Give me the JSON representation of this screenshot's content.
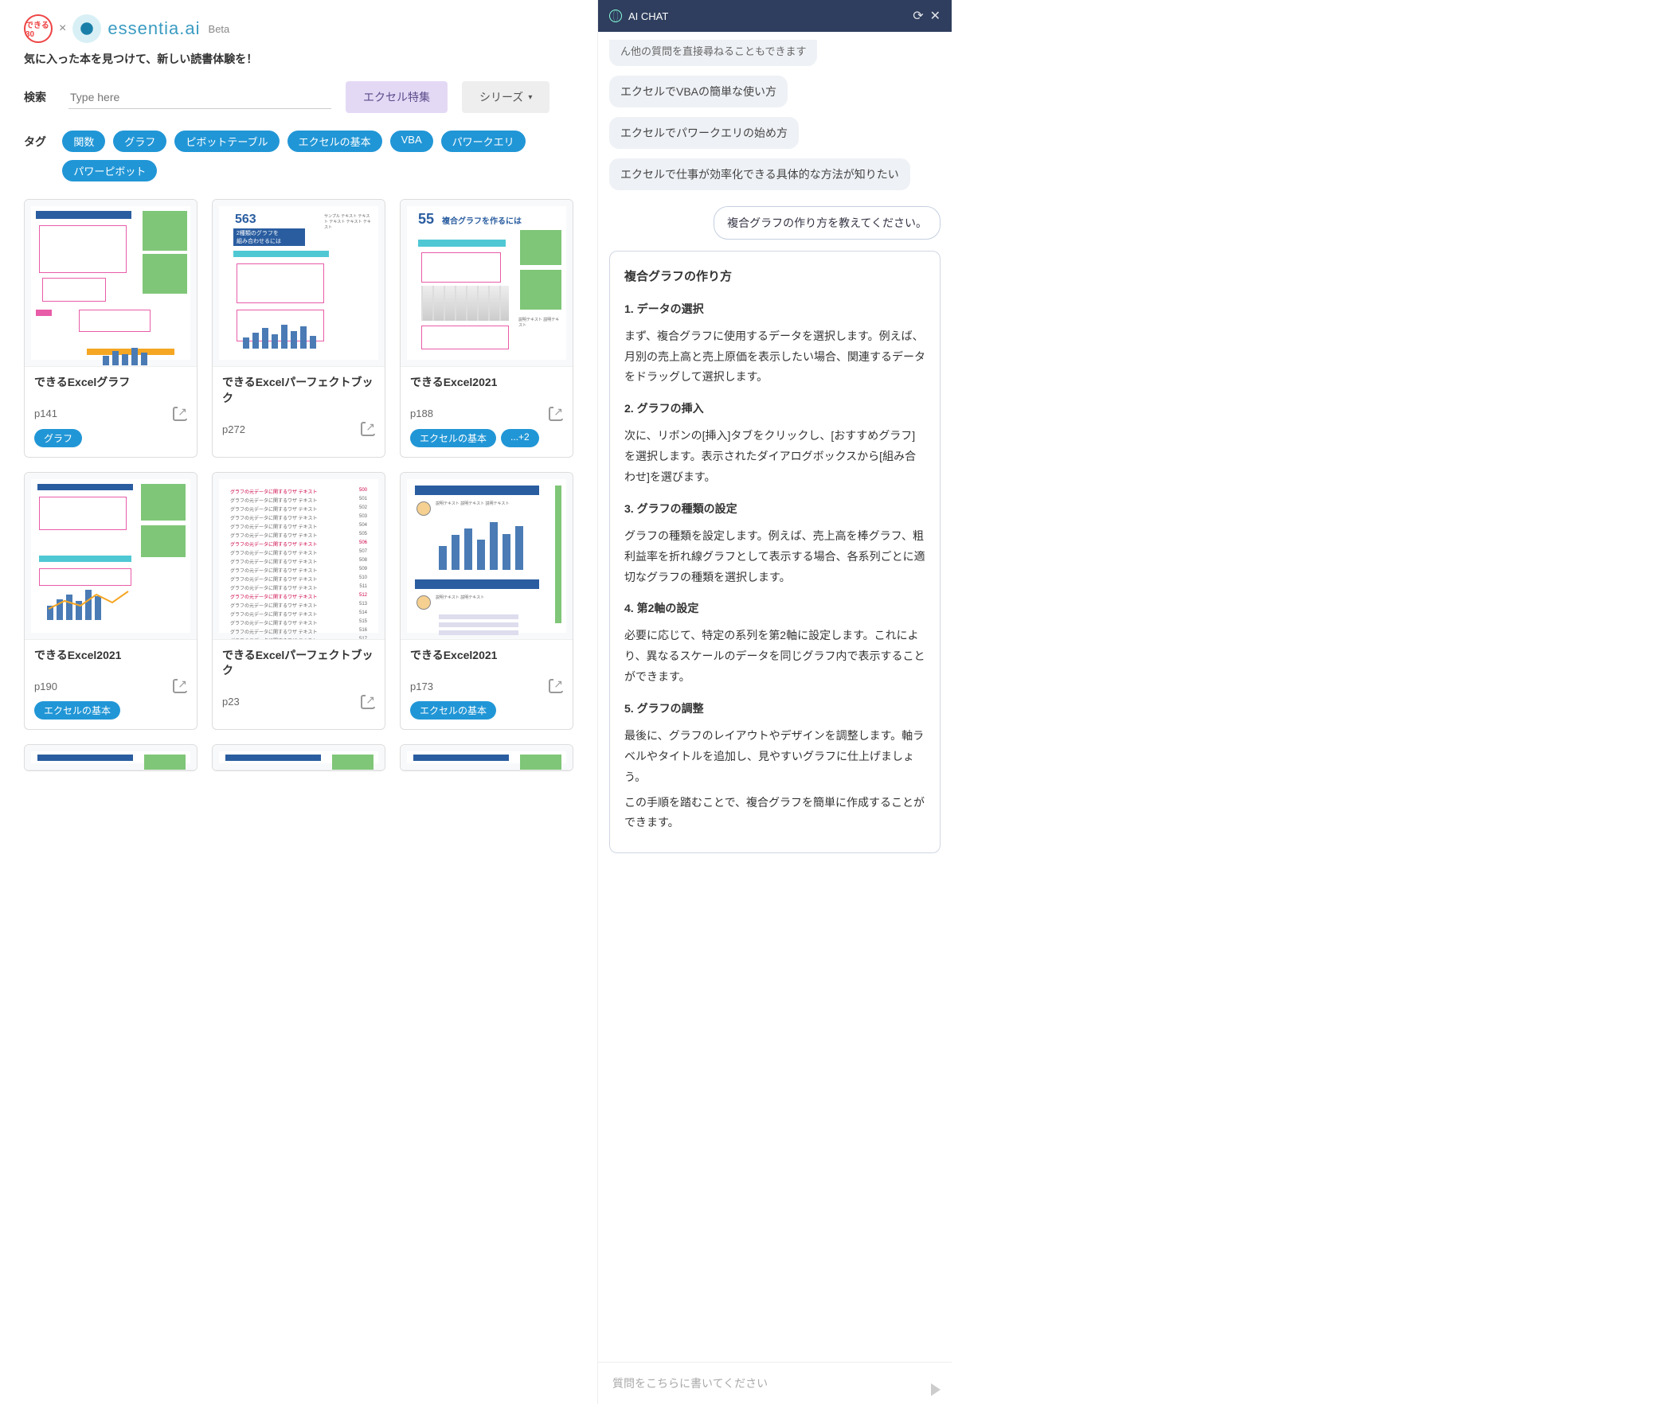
{
  "brand": {
    "name": "essentia.ai",
    "beta": "Beta",
    "badge": "できる30"
  },
  "tagline": "気に入った本を見つけて、新しい読書体験を！",
  "search": {
    "label": "検索",
    "placeholder": "Type here"
  },
  "buttons": {
    "excelSpecial": "エクセル特集",
    "series": "シリーズ"
  },
  "tagLabel": "タグ",
  "tags": [
    "関数",
    "グラフ",
    "ピボットテーブル",
    "エクセルの基本",
    "VBA",
    "パワークエリ",
    "パワーピボット"
  ],
  "cards": [
    {
      "title": "できるExcelグラフ",
      "page": "p141",
      "chips": [
        "グラフ"
      ]
    },
    {
      "title": "できるExcelパーフェクトブック",
      "page": "p272",
      "chips": []
    },
    {
      "title": "できるExcel2021",
      "page": "p188",
      "chips": [
        "エクセルの基本",
        "...+2"
      ]
    },
    {
      "title": "できるExcel2021",
      "page": "p190",
      "chips": [
        "エクセルの基本"
      ]
    },
    {
      "title": "できるExcelパーフェクトブック",
      "page": "p23",
      "chips": []
    },
    {
      "title": "できるExcel2021",
      "page": "p173",
      "chips": [
        "エクセルの基本"
      ]
    }
  ],
  "thumbs": {
    "t0": {
      "bignum": "563",
      "title": "2種類のグラフを\n組み合わせるには"
    },
    "t1": {
      "num": "55",
      "title": "複合グラフを作るには"
    },
    "t5_bars": [
      30,
      44,
      52,
      38,
      60,
      45,
      55
    ],
    "colors": {
      "blue": "#4a7bb5",
      "darkblue": "#2a5da0",
      "green": "#7fc678",
      "pink": "#e85ca8",
      "cyan": "#4fc8d4",
      "orange": "#f5a623"
    }
  },
  "chat": {
    "title": "AI CHAT",
    "truncated": "ん他の質問を直接尋ねることもできます",
    "suggestions": [
      "エクセルでVBAの簡単な使い方",
      "エクセルでパワークエリの始め方",
      "エクセルで仕事が効率化できる具体的な方法が知りたい"
    ],
    "userMsg": "複合グラフの作り方を教えてください。",
    "answer": {
      "heading": "複合グラフの作り方",
      "steps": [
        {
          "t": "1. データの選択",
          "b": "まず、複合グラフに使用するデータを選択します。例えば、月別の売上高と売上原価を表示したい場合、関連するデータをドラッグして選択します。"
        },
        {
          "t": "2. グラフの挿入",
          "b": "次に、リボンの[挿入]タブをクリックし、[おすすめグラフ]を選択します。表示されたダイアログボックスから[組み合わせ]を選びます。"
        },
        {
          "t": "3. グラフの種類の設定",
          "b": "グラフの種類を設定します。例えば、売上高を棒グラフ、粗利益率を折れ線グラフとして表示する場合、各系列ごとに適切なグラフの種類を選択します。"
        },
        {
          "t": "4. 第2軸の設定",
          "b": "必要に応じて、特定の系列を第2軸に設定します。これにより、異なるスケールのデータを同じグラフ内で表示することができます。"
        },
        {
          "t": "5. グラフの調整",
          "b": "最後に、グラフのレイアウトやデザインを調整します。軸ラベルやタイトルを追加し、見やすいグラフに仕上げましょう。"
        }
      ],
      "closing": "この手順を踏むことで、複合グラフを簡単に作成することができます。"
    },
    "inputPlaceholder": "質問をこちらに書いてください"
  }
}
